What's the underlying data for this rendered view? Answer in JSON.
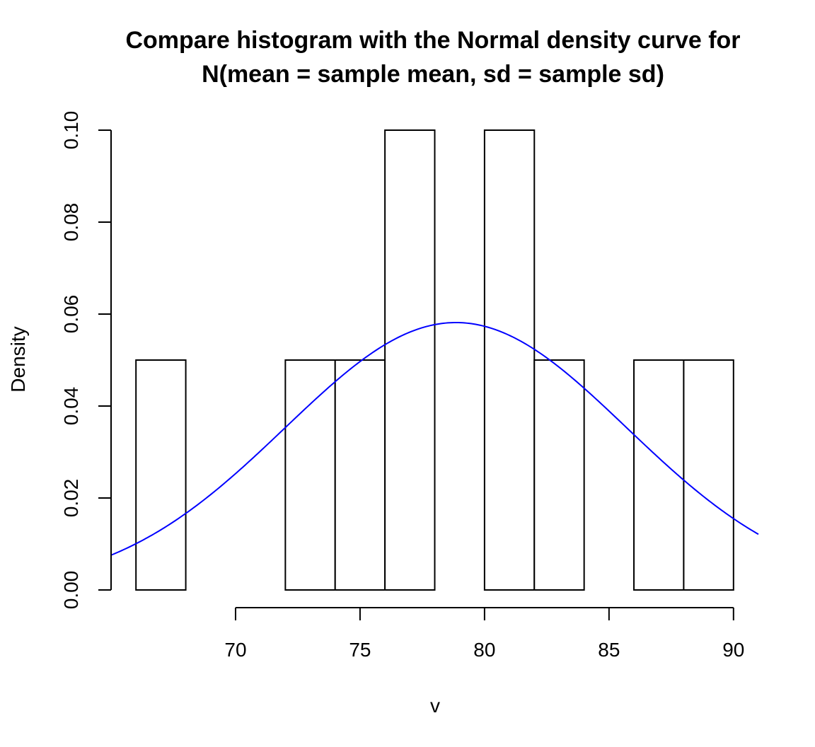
{
  "chart_data": {
    "type": "histogram",
    "title_lines": [
      "Compare histogram with the Normal density curve for",
      "N(mean = sample mean,  sd = sample sd)"
    ],
    "xlabel": "v",
    "ylabel": "Density",
    "xlim": [
      65,
      91
    ],
    "ylim": [
      0,
      0.1
    ],
    "x_ticks": [
      70,
      75,
      80,
      85,
      90
    ],
    "y_ticks": [
      0,
      0.02,
      0.04,
      0.06,
      0.08,
      0.1
    ],
    "x_tick_labels": [
      "70",
      "75",
      "80",
      "85",
      "90"
    ],
    "y_tick_labels": [
      "0.00",
      "0.02",
      "0.04",
      "0.06",
      "0.08",
      "0.10"
    ],
    "bins": [
      {
        "start": 66,
        "end": 68,
        "density": 0.05
      },
      {
        "start": 68,
        "end": 70,
        "density": 0
      },
      {
        "start": 70,
        "end": 72,
        "density": 0
      },
      {
        "start": 72,
        "end": 74,
        "density": 0.05
      },
      {
        "start": 74,
        "end": 76,
        "density": 0.05
      },
      {
        "start": 76,
        "end": 78,
        "density": 0.1
      },
      {
        "start": 78,
        "end": 80,
        "density": 0
      },
      {
        "start": 80,
        "end": 82,
        "density": 0.1
      },
      {
        "start": 82,
        "end": 84,
        "density": 0.05
      },
      {
        "start": 84,
        "end": 86,
        "density": 0
      },
      {
        "start": 86,
        "end": 88,
        "density": 0.05
      },
      {
        "start": 88,
        "end": 90,
        "density": 0.05
      }
    ],
    "normal_curve": {
      "mean": 78.85,
      "sd": 6.86,
      "color": "#0000ff"
    },
    "bar_fill": "#ffffff",
    "bar_stroke": "#000000",
    "grid": false,
    "legend": "none"
  }
}
